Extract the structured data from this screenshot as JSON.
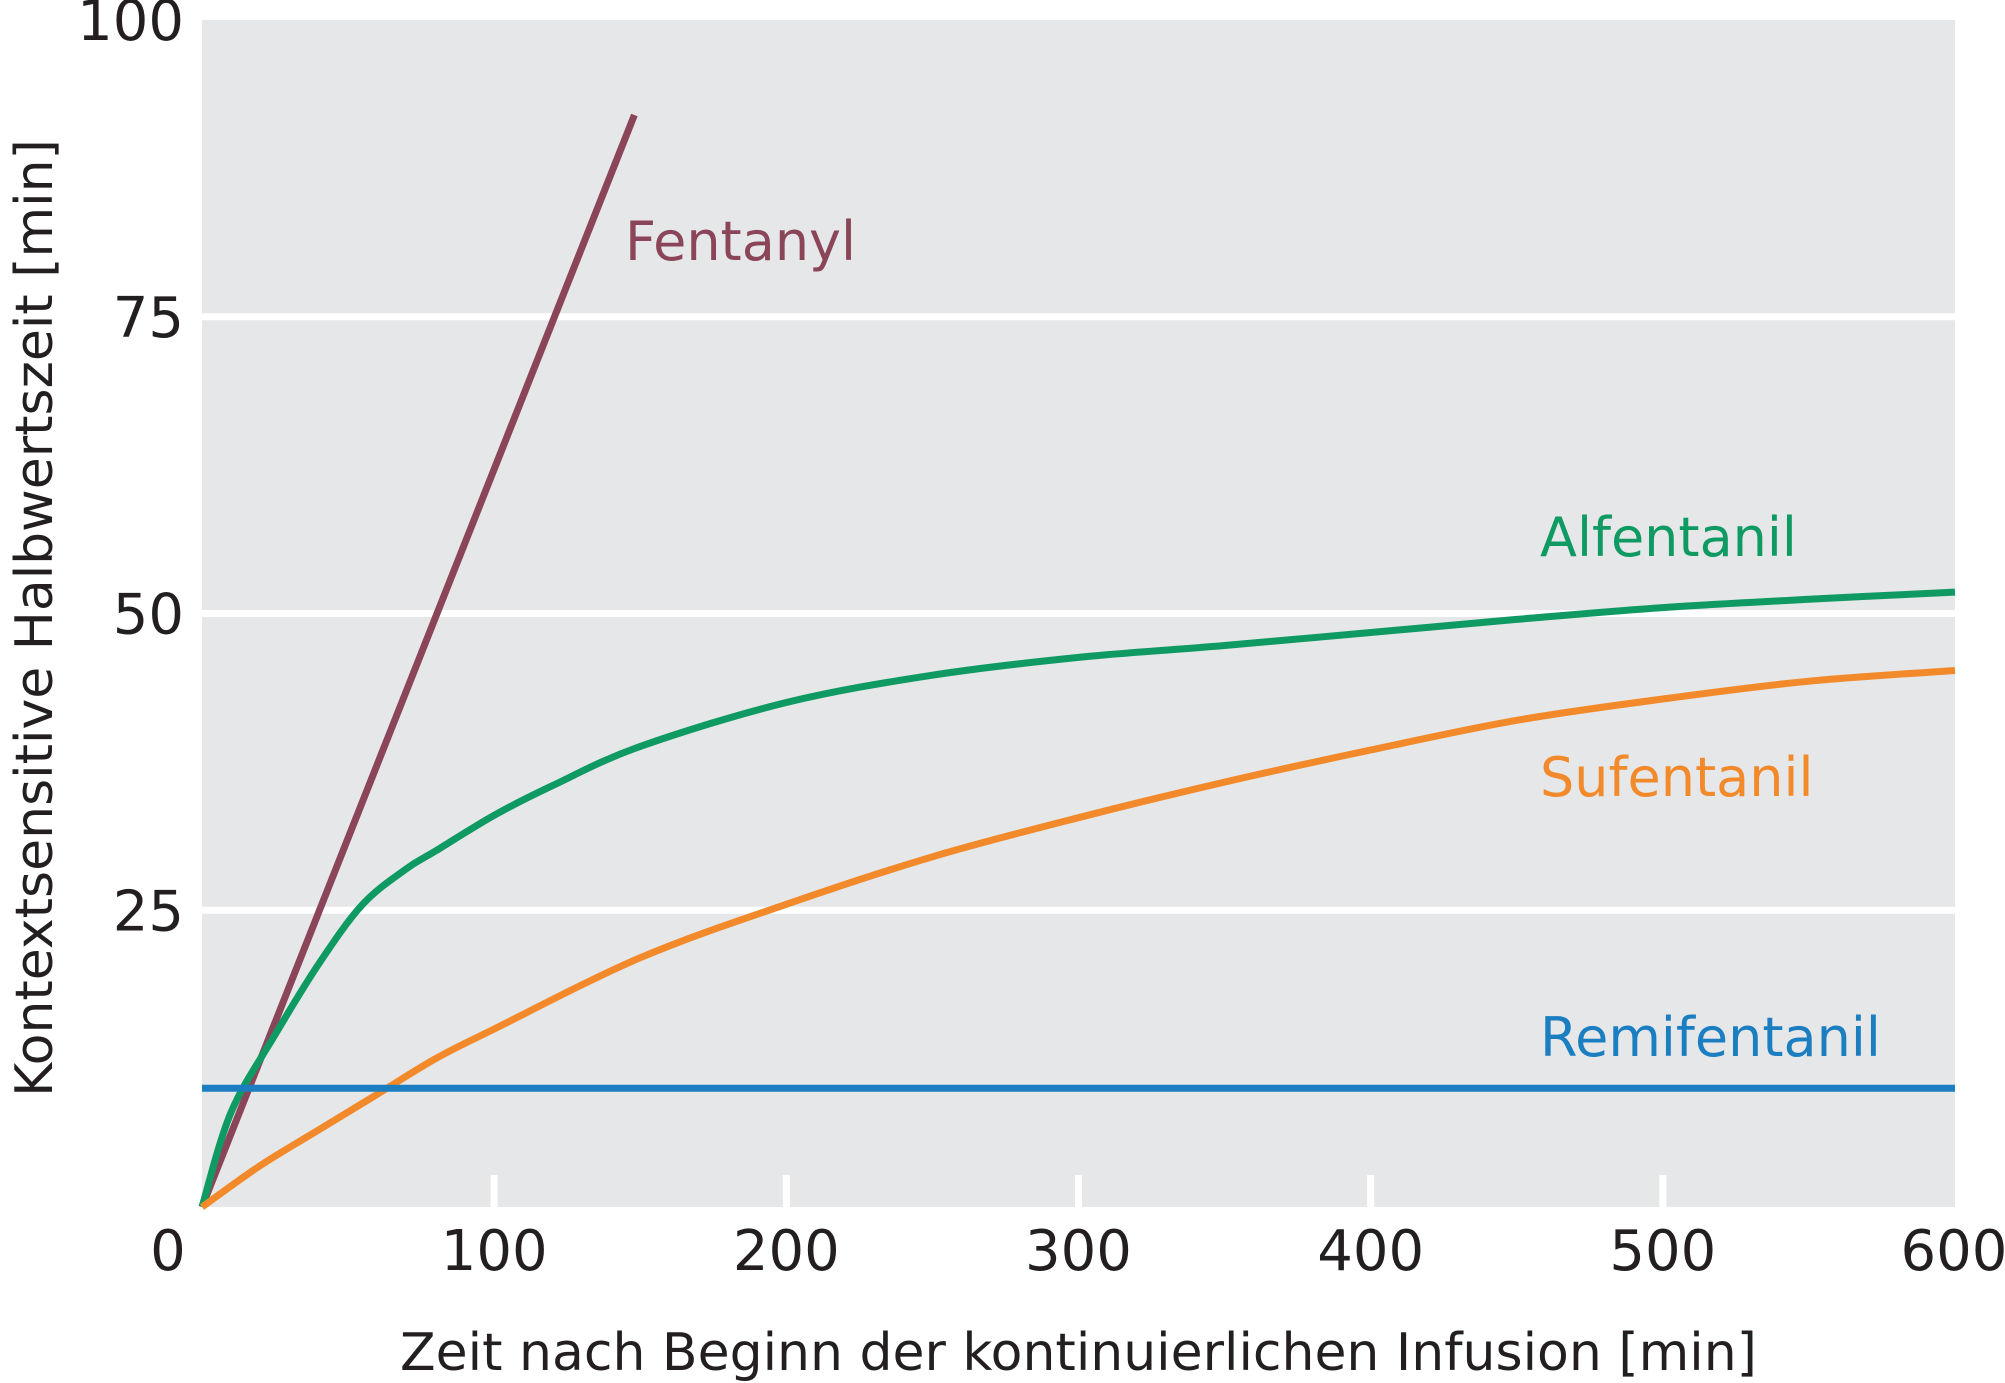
{
  "chart_data": {
    "type": "line",
    "title": "",
    "xlabel": "Zeit nach Beginn der kontinuierlichen Infusion [min]",
    "ylabel": "Kontextsensitive Halbwertszeit [min]",
    "xlim": [
      0,
      600
    ],
    "ylim": [
      0,
      100
    ],
    "x_ticks": [
      0,
      100,
      200,
      300,
      400,
      500,
      600
    ],
    "y_ticks": [
      25,
      50,
      75,
      100
    ],
    "x_tick_labels": [
      "0",
      "100",
      "200",
      "300",
      "400",
      "500",
      "600"
    ],
    "y_tick_labels": [
      "25",
      "50",
      "75",
      "100"
    ],
    "grid": "horizontal",
    "background_color": "#e6e7e8",
    "grid_color": "#ffffff",
    "legend": "inline labels next to lines",
    "series": [
      {
        "name": "Fentanyl",
        "color": "#8b4559",
        "x": [
          0,
          148
        ],
        "y": [
          0,
          92
        ]
      },
      {
        "name": "Alfentanil",
        "color": "#0f9a63",
        "x": [
          0,
          10,
          25,
          40,
          55,
          70,
          80,
          100,
          120,
          150,
          200,
          250,
          300,
          350,
          400,
          450,
          500,
          550,
          600
        ],
        "y": [
          0,
          8,
          14.5,
          20.5,
          25.5,
          28.5,
          30,
          33,
          35.5,
          38.8,
          42.5,
          44.8,
          46.3,
          47.3,
          48.4,
          49.5,
          50.5,
          51.2,
          51.8
        ]
      },
      {
        "name": "Sufentanil",
        "color": "#f28a2b",
        "x": [
          0,
          20,
          40,
          60,
          80,
          100,
          150,
          200,
          250,
          300,
          350,
          400,
          450,
          500,
          550,
          600
        ],
        "y": [
          0,
          3.5,
          6.5,
          9.5,
          12.5,
          15,
          21,
          25.5,
          29.5,
          32.8,
          35.8,
          38.5,
          41,
          42.8,
          44.3,
          45.2
        ]
      },
      {
        "name": "Remifentanil",
        "color": "#1a7ec1",
        "x": [
          0,
          600
        ],
        "y": [
          10,
          10
        ]
      }
    ]
  }
}
